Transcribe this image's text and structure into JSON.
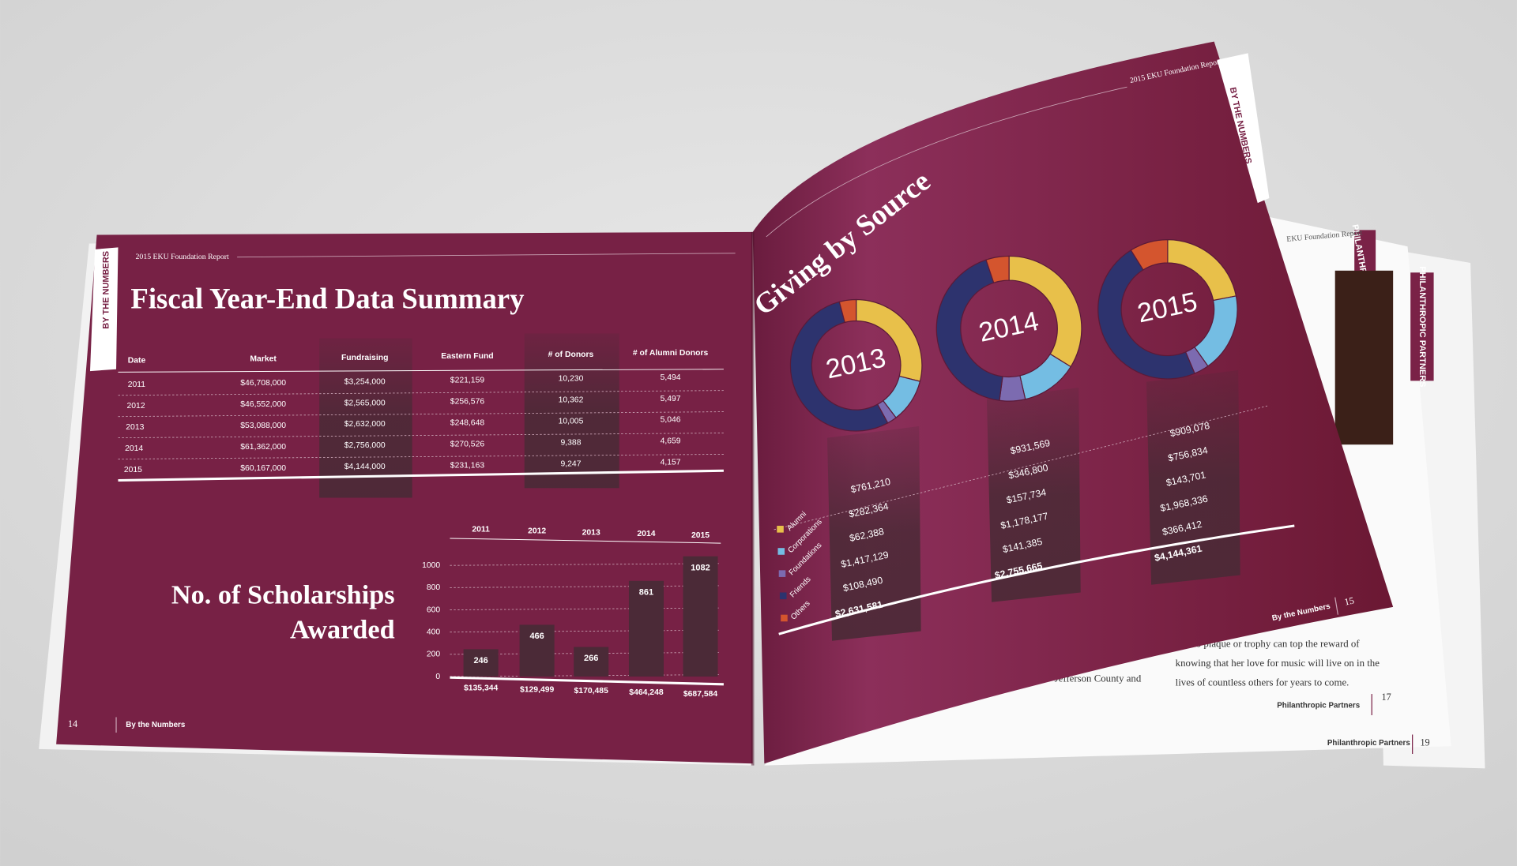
{
  "left_page": {
    "header": "2015 EKU Foundation Report",
    "tab": "BY THE NUMBERS",
    "title": "Fiscal Year-End Data Summary",
    "table": {
      "columns": [
        "Date",
        "Market",
        "Fundraising",
        "Eastern Fund",
        "# of Donors",
        "# of Alumni Donors"
      ],
      "rows": [
        [
          "2011",
          "$46,708,000",
          "$3,254,000",
          "$221,159",
          "10,230",
          "5,494"
        ],
        [
          "2012",
          "$46,552,000",
          "$2,565,000",
          "$256,576",
          "10,362",
          "5,497"
        ],
        [
          "2013",
          "$53,088,000",
          "$2,632,000",
          "$248,648",
          "10,005",
          "5,046"
        ],
        [
          "2014",
          "$61,362,000",
          "$2,756,000",
          "$270,526",
          "9,388",
          "4,659"
        ],
        [
          "2015",
          "$60,167,000",
          "$4,144,000",
          "$231,163",
          "9,247",
          "4,157"
        ]
      ]
    },
    "page_number": "14",
    "footer": "By the Numbers"
  },
  "right_page": {
    "header": "2015 EKU Foundation Report",
    "tab": "BY THE NUMBERS",
    "title": "Giving by Source",
    "footer": "By the Numbers",
    "page_number": "15"
  },
  "back_pages": {
    "header": "EKU Foundation Report",
    "tab": "PHILANTHROPIC PARTNERS",
    "lines": [
      "but no plaque or trophy can top the reward of",
      "knowing that her love for music will live on in the",
      "lives of countless others for years to come."
    ],
    "fragment": "Jefferson County and",
    "footer_a": "Philanthropic Partners",
    "page_a": "17",
    "footer_b": "Philanthropic Partners",
    "page_b": "19"
  },
  "chart_data": [
    {
      "type": "bar",
      "title": "No. of Scholarships Awarded",
      "categories": [
        "2011",
        "2012",
        "2013",
        "2014",
        "2015"
      ],
      "values": [
        246,
        466,
        266,
        861,
        1082
      ],
      "amounts": [
        "$135,344",
        "$129,499",
        "$170,485",
        "$464,248",
        "$687,584"
      ],
      "color": "#4b2a37",
      "ylim": [
        0,
        1100
      ],
      "yticks": [
        0,
        200,
        400,
        600,
        800,
        1000
      ],
      "grid": true
    },
    {
      "type": "donut",
      "title": "2013",
      "categories": [
        "Alumni",
        "Corporations",
        "Foundations",
        "Friends",
        "Others"
      ],
      "colors": [
        "#e8c04a",
        "#74bde3",
        "#7c6bb0",
        "#2d336e",
        "#d4552e"
      ],
      "values": [
        761210,
        282364,
        62388,
        1417129,
        108490
      ],
      "value_labels": [
        "$761,210",
        "$282,364",
        "$62,388",
        "$1,417,129",
        "$108,490"
      ],
      "total": "$2,631,581"
    },
    {
      "type": "donut",
      "title": "2014",
      "categories": [
        "Alumni",
        "Corporations",
        "Foundations",
        "Friends",
        "Others"
      ],
      "colors": [
        "#e8c04a",
        "#74bde3",
        "#7c6bb0",
        "#2d336e",
        "#d4552e"
      ],
      "values": [
        931569,
        346800,
        157734,
        1178177,
        141385
      ],
      "value_labels": [
        "$931,569",
        "$346,800",
        "$157,734",
        "$1,178,177",
        "$141,385"
      ],
      "total": "$2,755,665"
    },
    {
      "type": "donut",
      "title": "2015",
      "categories": [
        "Alumni",
        "Corporations",
        "Foundations",
        "Friends",
        "Others"
      ],
      "colors": [
        "#e8c04a",
        "#74bde3",
        "#7c6bb0",
        "#2d336e",
        "#d4552e"
      ],
      "values": [
        909078,
        756834,
        143701,
        1968336,
        366412
      ],
      "value_labels": [
        "$909,078",
        "$756,834",
        "$143,701",
        "$1,968,336",
        "$366,412"
      ],
      "total": "$4,144,361"
    }
  ]
}
